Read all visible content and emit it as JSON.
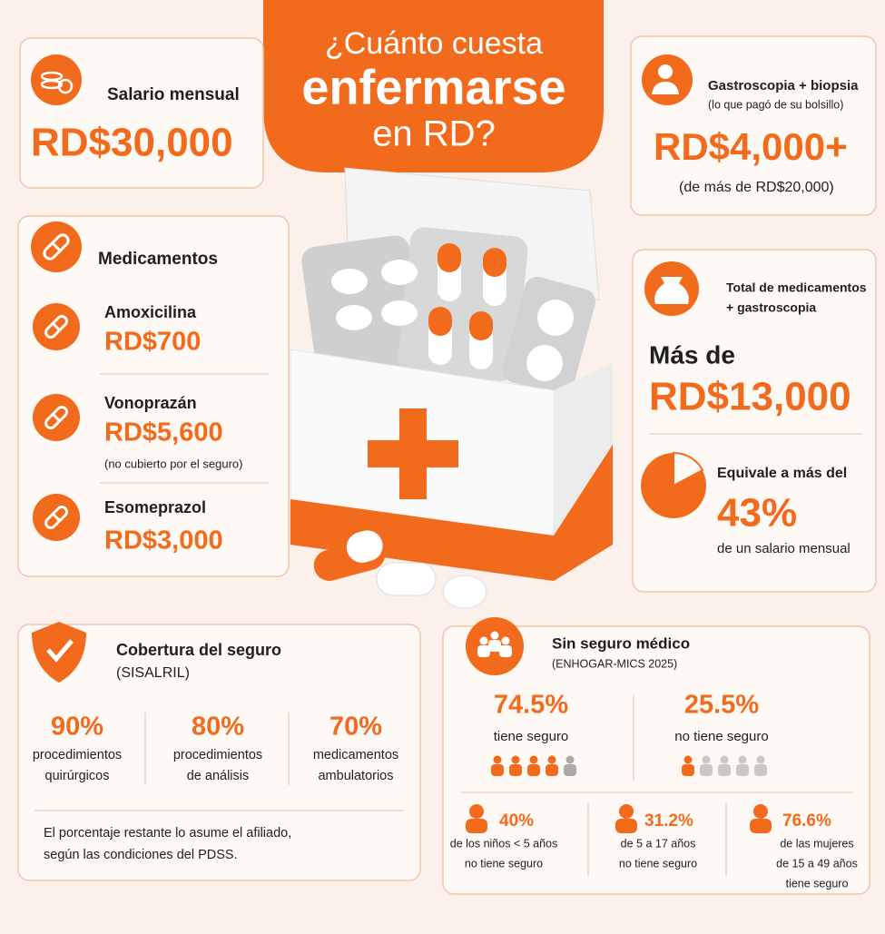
{
  "title": {
    "lines": [
      "¿Cuánto cuesta",
      "enfermarse",
      "en RD?"
    ]
  },
  "salary": {
    "label": "Salario mensual",
    "amount": "RD$30,000"
  },
  "medicines": {
    "heading": "Medicamentos",
    "items": [
      {
        "name": "Amoxicilina",
        "price": "RD$700"
      },
      {
        "name": "Vonoprazán",
        "price": "RD$5,600",
        "note": "(no cubierto por el seguro)"
      },
      {
        "name": "Esomeprazol",
        "price": "RD$3,000"
      }
    ]
  },
  "gastroscopy": {
    "label": "Gastroscopia + biopsia",
    "note": "(lo que pagó de su bolsillo)",
    "amount": "RD$4,000+",
    "detail": "(de más de RD$20,000)"
  },
  "total": {
    "label": [
      "Total de medicamentos",
      "+ gastroscopia"
    ],
    "prefix": "Más de",
    "amount": "RD$13,000",
    "share": {
      "label": "Equivale a más del",
      "value": "43%",
      "caption": "de un salario mensual"
    }
  },
  "coverage": {
    "title": "Cobertura del seguro",
    "subtitle": "(SISALRIL)",
    "items": [
      {
        "percent": "90%",
        "label": [
          "procedimientos",
          "quirúrgicos"
        ]
      },
      {
        "percent": "80%",
        "label": [
          "procedimientos",
          "de análisis"
        ]
      },
      {
        "percent": "70%",
        "label": [
          "medicamentos",
          "ambulatorios"
        ]
      }
    ],
    "note": [
      "El porcentaje restante lo asume el afiliado,",
      "según las condiciones del PDSS."
    ]
  },
  "uninsured": {
    "title": "Sin seguro médico",
    "source": "(ENHOGAR-MICS 2025)",
    "split": [
      {
        "percent": "74.5%",
        "label": "tiene seguro"
      },
      {
        "percent": "25.5%",
        "label": "no tiene seguro"
      }
    ],
    "groups": [
      {
        "percent": "40%",
        "label": [
          "de los niños < 5 años",
          "no tiene seguro"
        ]
      },
      {
        "percent": "31.2%",
        "label": [
          "de 5 a 17 años",
          "no tiene seguro"
        ]
      },
      {
        "percent": "76.6%",
        "label": [
          "de las mujeres",
          "de 15 a 49 años",
          "tiene seguro"
        ]
      }
    ]
  }
}
